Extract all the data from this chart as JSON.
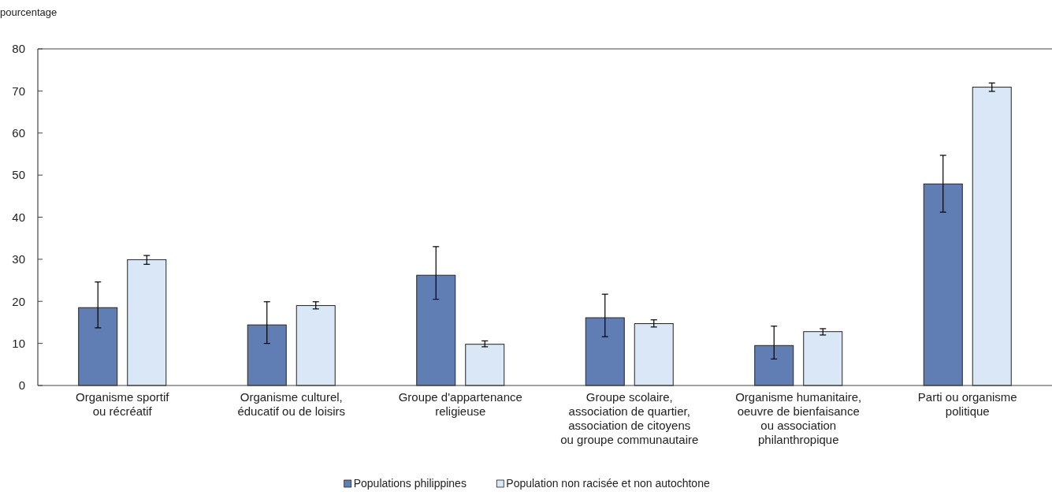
{
  "chart_data": {
    "type": "bar",
    "ylabel": "pourcentage",
    "categories": [
      "Organisme sportif\nou récréatif",
      "Organisme culturel,\néducatif ou de loisirs",
      "Groupe d'appartenance\nreligieuse",
      "Groupe scolaire,\nassociation de quartier,\nassociation de citoyens\nou groupe communautaire",
      "Organisme humanitaire,\noeuvre de bienfaisance\nou association\nphilanthropique",
      "Parti ou organisme\npolitique"
    ],
    "series": [
      {
        "name": "Populations philippines",
        "color": "#607eb4",
        "values": [
          18.5,
          14.4,
          26.2,
          16.1,
          9.5,
          47.9
        ],
        "errors": [
          [
            13.7,
            24.6
          ],
          [
            10.0,
            19.9
          ],
          [
            20.5,
            33.0
          ],
          [
            11.6,
            21.7
          ],
          [
            6.3,
            14.1
          ],
          [
            41.2,
            54.7
          ]
        ]
      },
      {
        "name": "Population non racisée et non autochtone",
        "color": "#d9e7f6",
        "values": [
          29.9,
          19.0,
          9.8,
          14.7,
          12.8,
          70.9
        ],
        "errors": [
          [
            28.8,
            30.9
          ],
          [
            18.2,
            19.9
          ],
          [
            9.2,
            10.6
          ],
          [
            13.9,
            15.6
          ],
          [
            12.0,
            13.5
          ],
          [
            69.9,
            71.9
          ]
        ]
      }
    ],
    "ylim": [
      0,
      80
    ],
    "yticks": [
      0,
      10,
      20,
      30,
      40,
      50,
      60,
      70,
      80
    ],
    "grid": false,
    "legend": "bottom"
  }
}
